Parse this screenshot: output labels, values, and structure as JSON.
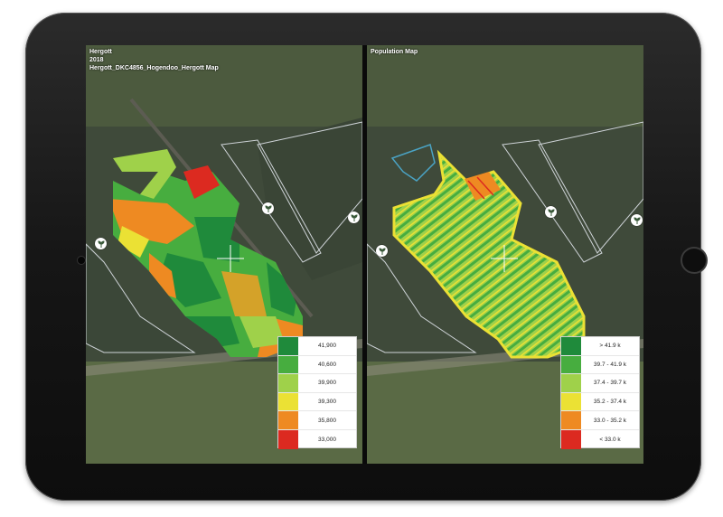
{
  "left_map": {
    "title_line1": "Hergott",
    "title_line2": "2018",
    "title_line3": "Hergott_DKC4856_Hogendoo_Hergott Map",
    "legend": [
      {
        "label": "41,900",
        "color": "#1f8a3b"
      },
      {
        "label": "40,600",
        "color": "#47ad3f"
      },
      {
        "label": "39,900",
        "color": "#9fd14a"
      },
      {
        "label": "39,300",
        "color": "#ebe134"
      },
      {
        "label": "35,800",
        "color": "#ee8a22"
      },
      {
        "label": "33,000",
        "color": "#dc2a20"
      }
    ]
  },
  "right_map": {
    "title": "Population Map",
    "legend": [
      {
        "label": "> 41.9 k",
        "color": "#1f8a3b"
      },
      {
        "label": "39.7 - 41.9 k",
        "color": "#47ad3f"
      },
      {
        "label": "37.4 - 39.7 k",
        "color": "#9fd14a"
      },
      {
        "label": "35.2 - 37.4 k",
        "color": "#ebe134"
      },
      {
        "label": "33.0 - 35.2 k",
        "color": "#ee8a22"
      },
      {
        "label": "< 33.0 k",
        "color": "#dc2a20"
      }
    ]
  },
  "icons": {
    "field_marker": "plant-icon",
    "crosshair": "crosshair-icon"
  }
}
